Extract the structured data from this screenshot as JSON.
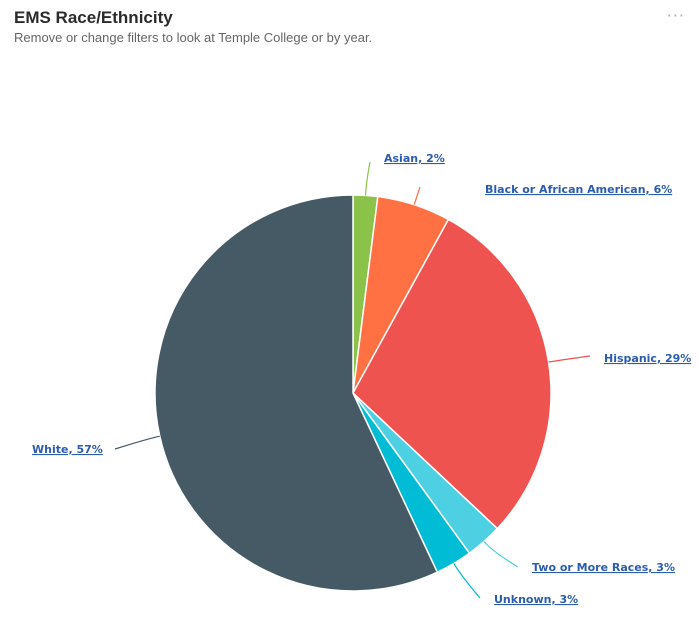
{
  "header": {
    "title": "EMS Race/Ethnicity",
    "subtitle": "Remove or change filters to look at Temple College or by year.",
    "more_icon": "more-horizontal-icon",
    "more_label": "···"
  },
  "chart_data": {
    "type": "pie",
    "title": "EMS Race/Ethnicity",
    "slices": [
      {
        "label": "Asian, 2%",
        "name": "Asian",
        "value": 2,
        "color": "#8bc34a"
      },
      {
        "label": "Black or African American, 6%",
        "name": "Black or African American",
        "value": 6,
        "color": "#ff7043"
      },
      {
        "label": "Hispanic, 29%",
        "name": "Hispanic",
        "value": 29,
        "color": "#ef5350"
      },
      {
        "label": "Two or More Races, 3%",
        "name": "Two or More Races",
        "value": 3,
        "color": "#4dd0e1"
      },
      {
        "label": "Unknown, 3%",
        "name": "Unknown",
        "value": 3,
        "color": "#00bcd4"
      },
      {
        "label": "White, 57%",
        "name": "White",
        "value": 57,
        "color": "#455a64"
      }
    ]
  }
}
